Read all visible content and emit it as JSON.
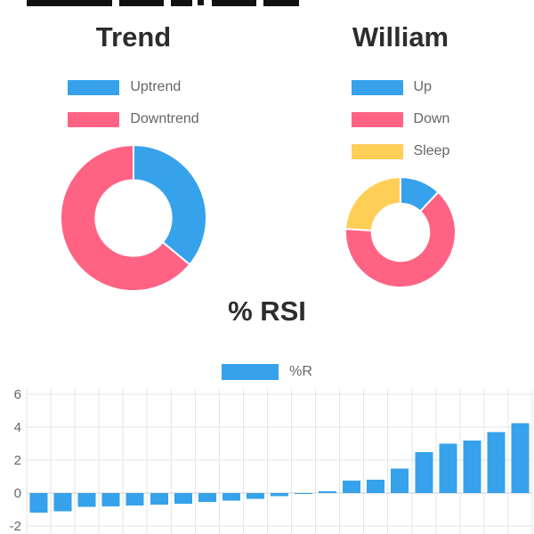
{
  "colors": {
    "blue": "#36A2EB",
    "pink": "#FF6384",
    "yellow": "#FFCE56",
    "title_text": "#2d2d2d",
    "legend_text": "#666666",
    "grid": "#e6e6e6",
    "zero_line": "#cfcfcf"
  },
  "chart_data": [
    {
      "type": "pie",
      "subtype": "doughnut",
      "title": "Trend",
      "labels": [
        "Uptrend",
        "Downtrend"
      ],
      "values": [
        36,
        64
      ],
      "colors": [
        "#36A2EB",
        "#FF6384"
      ],
      "legend_position": "top",
      "start_angle_deg": -90
    },
    {
      "type": "pie",
      "subtype": "doughnut",
      "title": "William",
      "labels": [
        "Up",
        "Down",
        "Sleep"
      ],
      "values": [
        12,
        64,
        24
      ],
      "colors": [
        "#36A2EB",
        "#FF6384",
        "#FFCE56"
      ],
      "legend_position": "top",
      "start_angle_deg": -90
    },
    {
      "type": "bar",
      "title": "% RSI",
      "series_label": "%R",
      "color": "#36A2EB",
      "values": [
        -1.2,
        -1.1,
        -0.85,
        -0.8,
        -0.75,
        -0.7,
        -0.65,
        -0.55,
        -0.45,
        -0.35,
        -0.2,
        -0.05,
        0.1,
        0.75,
        0.8,
        1.5,
        2.5,
        3.0,
        3.2,
        3.7,
        4.25
      ],
      "y_ticks": [
        6,
        4,
        2,
        0,
        -2
      ],
      "ylim": [
        -2.5,
        6.5
      ],
      "grid": true,
      "legend_position": "top",
      "x_axis_labels_visible": false
    }
  ]
}
